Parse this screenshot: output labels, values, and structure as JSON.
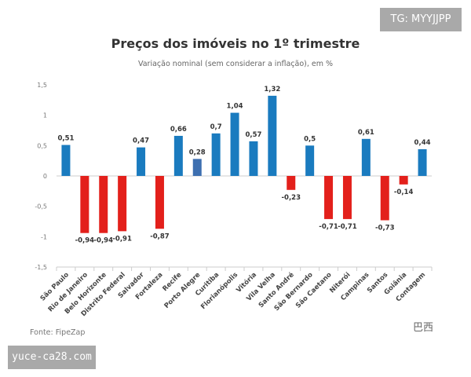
{
  "watermarks": {
    "top": "TG: MYYJJPP",
    "bottom": "yuce-ca28.com",
    "logo": "巴西"
  },
  "source": "Fonte: FipeZap",
  "chart_data": {
    "type": "bar",
    "title": "Preços dos imóveis no 1º trimestre",
    "subtitle": "Variação nominal (sem considerar a inflação), em %",
    "xlabel": "",
    "ylabel": "",
    "ylim": [
      -1.5,
      1.5
    ],
    "yticks": [
      "1,5",
      "1",
      "0,5",
      "0",
      "-0,5",
      "-1",
      "-1,5"
    ],
    "grid": false,
    "categories": [
      "São Paulo",
      "Rio de Janeiro",
      "Belo Horizonte",
      "Distrito Federal",
      "Salvador",
      "Fortaleza",
      "Recife",
      "Porto Alegre",
      "Curitiba",
      "Florianópolis",
      "Vitória",
      "Vila Velha",
      "Santo André",
      "São Bernardo",
      "São Caetano",
      "Niterói",
      "Campinas",
      "Santos",
      "Goiânia",
      "Contagem"
    ],
    "values": [
      0.51,
      -0.94,
      -0.94,
      -0.91,
      0.47,
      -0.87,
      0.66,
      0.28,
      0.7,
      1.04,
      0.57,
      1.32,
      -0.23,
      0.5,
      -0.71,
      -0.71,
      0.61,
      -0.73,
      -0.14,
      0.44
    ],
    "labels": [
      "0,51",
      "-0,94",
      "-0,94",
      "-0,91",
      "0,47",
      "-0,87",
      "0,66",
      "0,28",
      "0,7",
      "1,04",
      "0,57",
      "1,32",
      "-0,23",
      "0,5",
      "-0,71",
      "-0,71",
      "0,61",
      "-0,73",
      "-0,14",
      "0,44"
    ],
    "colors": {
      "positive": "#1a7bbf",
      "negative": "#e3201b",
      "highlight": "#3d6fb0"
    },
    "highlight": "Porto Alegre"
  }
}
